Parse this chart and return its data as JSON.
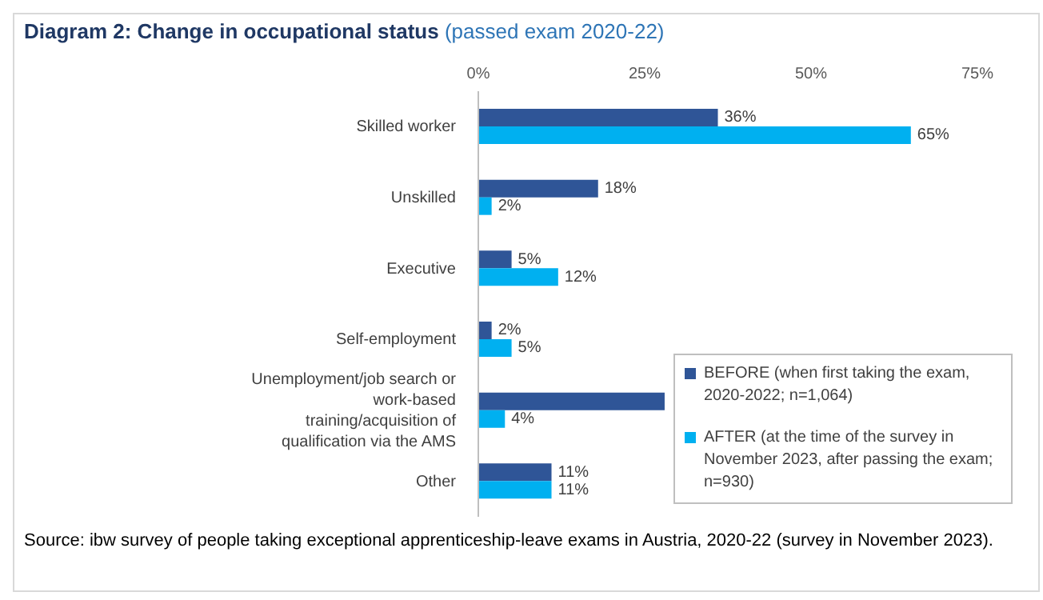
{
  "chart_data": {
    "type": "bar",
    "orientation": "horizontal",
    "title": "Diagram 2: Change in occupational status",
    "subtitle": "(passed exam 2020-22)",
    "categories": [
      "Skilled worker",
      "Unskilled",
      "Executive",
      "Self-employment",
      "Unemployment/job search or work-based training/acquisition of qualification via the AMS",
      "Other"
    ],
    "series": [
      {
        "name": "BEFORE (when first taking the exam, 2020-2022; n=1,064)",
        "color": "#2f5597",
        "values": [
          36,
          18,
          5,
          2,
          28,
          11
        ],
        "value_labels": [
          "36%",
          "18%",
          "5%",
          "2%",
          null,
          "11%"
        ]
      },
      {
        "name": "AFTER (at the time of the survey in November 2023, after passing the exam; n=930)",
        "color": "#00b0f0",
        "values": [
          65,
          2,
          12,
          5,
          4,
          11
        ],
        "value_labels": [
          "65%",
          "2%",
          "12%",
          "5%",
          "4%",
          "11%"
        ]
      }
    ],
    "xlim": [
      0,
      75
    ],
    "xticks": [
      {
        "value": 0,
        "label": "0%"
      },
      {
        "value": 25,
        "label": "25%"
      },
      {
        "value": 50,
        "label": "50%"
      },
      {
        "value": 75,
        "label": "75%"
      }
    ],
    "grid": false,
    "legend": "bottom right",
    "annotations": [
      "Source: ibw survey of people taking exceptional apprenticeship-leave exams in Austria, 2020-22 (survey in November 2023)."
    ]
  }
}
